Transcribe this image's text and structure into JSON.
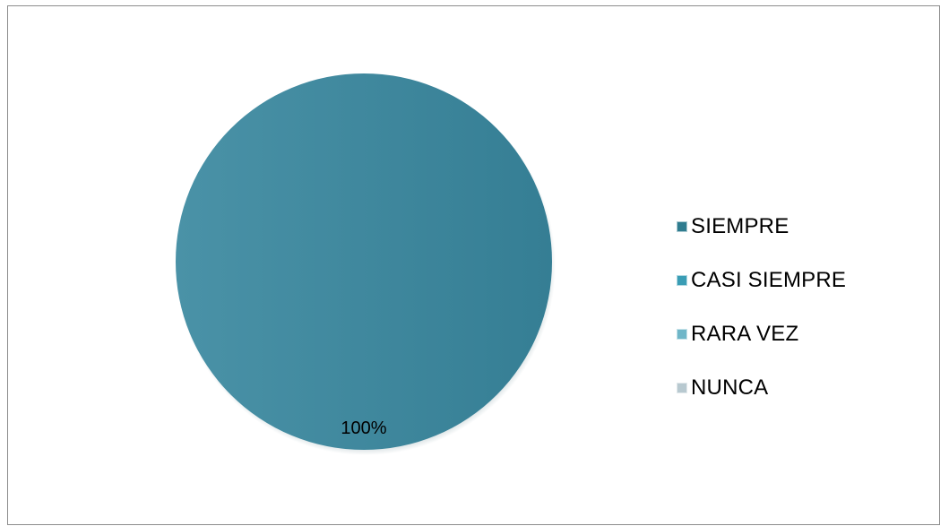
{
  "chart_data": {
    "type": "pie",
    "categories": [
      "SIEMPRE",
      "CASI SIEMPRE",
      "RARA VEZ",
      "NUNCA"
    ],
    "values": [
      100,
      0,
      0,
      0
    ],
    "data_labels": [
      "100%",
      "",
      "",
      ""
    ],
    "colors": [
      "#2f7c8f",
      "#3a9db5",
      "#6fb6c8",
      "#b8c9d0"
    ],
    "legend_position": "right"
  }
}
